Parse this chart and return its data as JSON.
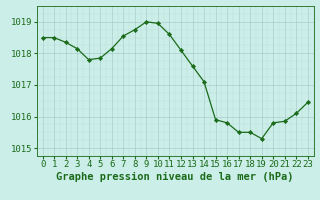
{
  "x": [
    0,
    1,
    2,
    3,
    4,
    5,
    6,
    7,
    8,
    9,
    10,
    11,
    12,
    13,
    14,
    15,
    16,
    17,
    18,
    19,
    20,
    21,
    22,
    23
  ],
  "y": [
    1018.5,
    1018.5,
    1018.35,
    1018.15,
    1017.8,
    1017.85,
    1018.15,
    1018.55,
    1018.75,
    1019.0,
    1018.95,
    1018.6,
    1018.1,
    1017.6,
    1017.1,
    1015.9,
    1015.8,
    1015.5,
    1015.5,
    1015.3,
    1015.8,
    1015.85,
    1016.1,
    1016.45
  ],
  "line_color": "#1a6b1a",
  "marker_color": "#1a6b1a",
  "bg_color": "#cceee8",
  "grid_color_major": "#aacccc",
  "grid_color_minor": "#bbdddd",
  "xlabel": "Graphe pression niveau de la mer (hPa)",
  "xlabel_color": "#1a6b1a",
  "tick_color": "#1a6b1a",
  "ylim_min": 1014.75,
  "ylim_max": 1019.5,
  "yticks": [
    1015,
    1016,
    1017,
    1018,
    1019
  ],
  "xticks": [
    0,
    1,
    2,
    3,
    4,
    5,
    6,
    7,
    8,
    9,
    10,
    11,
    12,
    13,
    14,
    15,
    16,
    17,
    18,
    19,
    20,
    21,
    22,
    23
  ],
  "font_size_xlabel": 7.5,
  "font_size_ticks": 6.5
}
